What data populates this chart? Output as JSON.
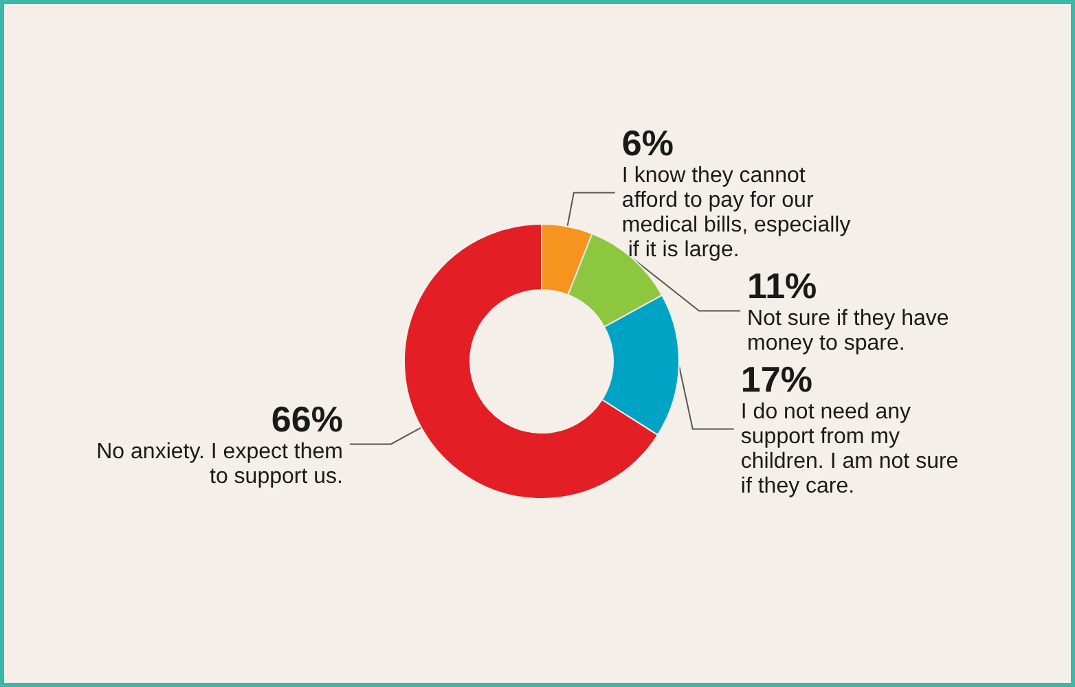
{
  "chart_data": {
    "type": "donut",
    "categories": [
      "I know they cannot afford to pay for our medical bills, especially if it is large.",
      "Not sure if they have money to spare.",
      "I do not need any support from my children. I am not sure if they care.",
      "No anxiety. I expect them to support us."
    ],
    "values": [
      6,
      11,
      17,
      66
    ],
    "value_labels": [
      "6%",
      "11%",
      "17%",
      "66%"
    ],
    "colors": [
      "#f7941d",
      "#8dc63f",
      "#00a3c4",
      "#e31e24"
    ],
    "data_labels": true
  }
}
